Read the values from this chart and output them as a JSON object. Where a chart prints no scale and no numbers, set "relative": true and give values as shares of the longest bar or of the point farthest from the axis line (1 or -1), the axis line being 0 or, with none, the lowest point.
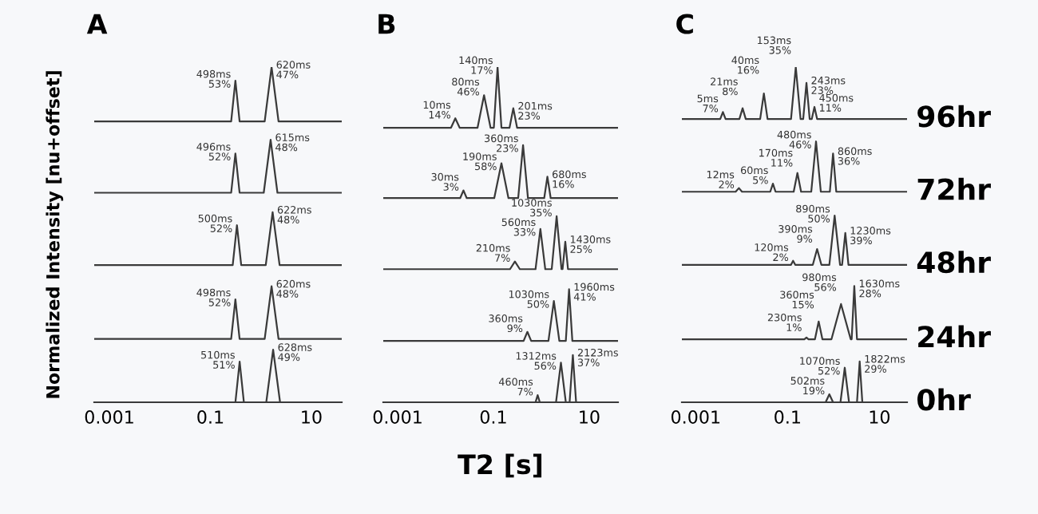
{
  "chart_data": [
    {
      "type": "line",
      "title": "A",
      "ylabel": "Normalized Intensity [nu+offset]",
      "relative": true,
      "log": "x",
      "xlim": [
        0.0005,
        40
      ],
      "xticks": [
        0.001,
        0.1,
        10
      ],
      "tick_labels": "x",
      "grid": false,
      "marker": "none",
      "line_style": "solid",
      "series": [
        {
          "color": "#3a3a3a",
          "x": [
            0.0005,
            0.258,
            0.313,
            0.379,
            1.19,
            1.63,
            2.24,
            40
          ],
          "values": [
            0.838,
            0.838,
            0.959,
            0.838,
            0.838,
            1.0,
            0.838,
            0.838
          ]
        },
        {
          "color": "#3a3a3a",
          "x": [
            0.0005,
            0.258,
            0.313,
            0.379,
            1.14,
            1.56,
            2.13,
            40
          ],
          "values": [
            0.625,
            0.625,
            0.742,
            0.625,
            0.625,
            0.783,
            0.625,
            0.625
          ]
        },
        {
          "color": "#3a3a3a",
          "x": [
            0.0005,
            0.277,
            0.336,
            0.408,
            1.25,
            1.71,
            2.35,
            40
          ],
          "values": [
            0.409,
            0.409,
            0.528,
            0.409,
            0.409,
            0.567,
            0.409,
            0.409
          ]
        },
        {
          "color": "#3a3a3a",
          "x": [
            0.0005,
            0.258,
            0.313,
            0.379,
            1.19,
            1.63,
            2.24,
            40
          ],
          "values": [
            0.189,
            0.189,
            0.307,
            0.189,
            0.189,
            0.346,
            0.189,
            0.189
          ]
        },
        {
          "color": "#3a3a3a",
          "x": [
            0.0005,
            0.313,
            0.38,
            0.461,
            1.28,
            1.75,
            2.4,
            40
          ],
          "values": [
            0,
            0,
            0.121,
            0,
            0,
            0.157,
            0,
            0
          ]
        }
      ],
      "annotations": [
        {
          "text": "498ms\n53%",
          "x": 0.313,
          "y": 0.959
        },
        {
          "text": "620ms\n47%",
          "x": 1.63,
          "y": 1.0
        },
        {
          "text": "496ms\n52%",
          "x": 0.313,
          "y": 0.742
        },
        {
          "text": "615ms\n48%",
          "x": 1.56,
          "y": 0.783
        },
        {
          "text": "500ms\n52%",
          "x": 0.336,
          "y": 0.528
        },
        {
          "text": "622ms\n48%",
          "x": 1.71,
          "y": 0.567
        },
        {
          "text": "498ms\n52%",
          "x": 0.313,
          "y": 0.307
        },
        {
          "text": "620ms\n48%",
          "x": 1.63,
          "y": 0.346
        },
        {
          "text": "510ms\n51%",
          "x": 0.38,
          "y": 0.121
        },
        {
          "text": "628ms\n49%",
          "x": 1.75,
          "y": 0.157
        }
      ]
    },
    {
      "type": "line",
      "title": "B",
      "xlabel": "T2 [s]",
      "relative": true,
      "log": "x",
      "xlim": [
        0.0005,
        40
      ],
      "xticks": [
        0.001,
        0.1,
        10
      ],
      "tick_labels": "x",
      "grid": false,
      "marker": "none",
      "line_style": "solid",
      "series": [
        {
          "color": "#3a3a3a",
          "x": [
            0.0005,
            0.013,
            0.016,
            0.0197,
            0.0466,
            0.0637,
            0.0871,
            0.102,
            0.122,
            0.147,
            0.217,
            0.26,
            0.312,
            40
          ],
          "values": [
            0.819,
            0.819,
            0.847,
            0.819,
            0.819,
            0.916,
            0.819,
            0.819,
            1.0,
            0.819,
            0.819,
            0.877,
            0.819,
            0.819
          ]
        },
        {
          "color": "#3a3a3a",
          "x": [
            0.0005,
            0.0202,
            0.0237,
            0.0277,
            0.104,
            0.147,
            0.206,
            0.329,
            0.416,
            0.526,
            1.15,
            1.34,
            1.57,
            40
          ],
          "values": [
            0.609,
            0.609,
            0.632,
            0.609,
            0.609,
            0.713,
            0.609,
            0.609,
            0.767,
            0.609,
            0.609,
            0.673,
            0.609,
            0.609
          ]
        },
        {
          "color": "#3a3a3a",
          "x": [
            0.0005,
            0.222,
            0.281,
            0.356,
            0.757,
            0.957,
            1.21,
            1.65,
            2.09,
            2.64,
            2.78,
            3.17,
            3.61,
            40
          ],
          "values": [
            0.397,
            0.397,
            0.42,
            0.397,
            0.397,
            0.517,
            0.397,
            0.397,
            0.555,
            0.397,
            0.397,
            0.479,
            0.397,
            0.397
          ]
        },
        {
          "color": "#3a3a3a",
          "x": [
            0.0005,
            0.427,
            0.512,
            0.614,
            1.41,
            1.83,
            2.38,
            3.25,
            3.8,
            4.45,
            40
          ],
          "values": [
            0.183,
            0.183,
            0.21,
            0.183,
            0.183,
            0.302,
            0.183,
            0.183,
            0.337,
            0.183,
            0.183
          ]
        },
        {
          "color": "#3a3a3a",
          "x": [
            0.0005,
            0.757,
            0.839,
            0.931,
            2.03,
            2.57,
            3.25,
            3.9,
            4.56,
            5.33,
            40
          ],
          "values": [
            0,
            0,
            0.021,
            0,
            0,
            0.118,
            0,
            0,
            0.141,
            0,
            0
          ]
        }
      ],
      "annotations": [
        {
          "text": "10ms\n14%",
          "x": 0.016,
          "y": 0.847
        },
        {
          "text": "80ms\n46%",
          "x": 0.0637,
          "y": 0.916
        },
        {
          "text": "140ms\n17%",
          "x": 0.122,
          "y": 1.0
        },
        {
          "text": "201ms\n23%",
          "x": 0.26,
          "y": 0.877
        },
        {
          "text": "30ms\n3%",
          "x": 0.0237,
          "y": 0.632
        },
        {
          "text": "190ms\n58%",
          "x": 0.147,
          "y": 0.713
        },
        {
          "text": "360ms\n23%",
          "x": 0.416,
          "y": 0.767
        },
        {
          "text": "680ms\n16%",
          "x": 1.34,
          "y": 0.673
        },
        {
          "text": "210ms\n7%",
          "x": 0.281,
          "y": 0.42
        },
        {
          "text": "560ms\n33%",
          "x": 0.957,
          "y": 0.517
        },
        {
          "text": "1030ms\n35%",
          "x": 2.09,
          "y": 0.555
        },
        {
          "text": "1430ms\n25%",
          "x": 3.17,
          "y": 0.479
        },
        {
          "text": "360ms\n9%",
          "x": 0.512,
          "y": 0.21
        },
        {
          "text": "1030ms\n50%",
          "x": 1.83,
          "y": 0.302
        },
        {
          "text": "1960ms\n41%",
          "x": 3.8,
          "y": 0.337
        },
        {
          "text": "460ms\n7%",
          "x": 0.839,
          "y": 0.021
        },
        {
          "text": "1312ms\n56%",
          "x": 2.57,
          "y": 0.118
        },
        {
          "text": "2123ms\n37%",
          "x": 4.56,
          "y": 0.141
        }
      ]
    },
    {
      "type": "line",
      "title": "C",
      "relative": true,
      "log": "x",
      "xlim": [
        0.0005,
        40
      ],
      "xticks": [
        0.001,
        0.1,
        10
      ],
      "tick_labels": "x",
      "grid": false,
      "marker": "none",
      "line_style": "solid",
      "series": [
        {
          "name": "96hr",
          "color": "#3a3a3a",
          "x": [
            0.0005,
            0.00342,
            0.00391,
            0.00447,
            0.00893,
            0.0105,
            0.0123,
            0.0253,
            0.0305,
            0.0367,
            0.119,
            0.151,
            0.192,
            0.219,
            0.258,
            0.303,
            0.337,
            0.385,
            0.44,
            40
          ],
          "values": [
            0.845,
            0.845,
            0.866,
            0.845,
            0.845,
            0.877,
            0.845,
            0.845,
            0.921,
            0.845,
            0.845,
            1.0,
            0.845,
            0.845,
            0.953,
            0.845,
            0.845,
            0.881,
            0.845,
            0.845
          ]
        },
        {
          "name": "72hr",
          "color": "#3a3a3a",
          "x": [
            0.0005,
            0.00741,
            0.00871,
            0.0102,
            0.042,
            0.048,
            0.0548,
            0.136,
            0.164,
            0.197,
            0.328,
            0.417,
            0.53,
            0.834,
            0.979,
            1.15,
            40
          ],
          "values": [
            0.628,
            0.628,
            0.639,
            0.628,
            0.628,
            0.652,
            0.628,
            0.628,
            0.684,
            0.628,
            0.628,
            0.778,
            0.628,
            0.628,
            0.742,
            0.628,
            0.628
          ]
        },
        {
          "name": "48hr",
          "color": "#3a3a3a",
          "x": [
            0.0005,
            0.119,
            0.132,
            0.147,
            0.355,
            0.44,
            0.545,
            0.813,
            1.06,
            1.39,
            1.54,
            1.81,
            2.12,
            40
          ],
          "values": [
            0.41,
            0.41,
            0.422,
            0.41,
            0.41,
            0.457,
            0.41,
            0.41,
            0.557,
            0.41,
            0.41,
            0.505,
            0.41,
            0.41
          ]
        },
        {
          "name": "24hr",
          "color": "#3a3a3a",
          "x": [
            0.0005,
            0.232,
            0.258,
            0.286,
            0.395,
            0.476,
            0.574,
            0.904,
            1.46,
            2.37,
            2.49,
            2.84,
            3.25,
            40
          ],
          "values": [
            0.188,
            0.188,
            0.193,
            0.188,
            0.188,
            0.241,
            0.188,
            0.188,
            0.293,
            0.188,
            0.188,
            0.347,
            0.188,
            0.188
          ]
        },
        {
          "name": "0hr",
          "color": "#3a3a3a",
          "x": [
            0.0005,
            0.675,
            0.813,
            0.979,
            1.42,
            1.76,
            2.18,
            3.25,
            3.72,
            4.25,
            40
          ],
          "values": [
            0,
            0,
            0.024,
            0,
            0,
            0.103,
            0,
            0,
            0.122,
            0,
            0
          ]
        }
      ],
      "annotations": [
        {
          "text": "5ms\n7%",
          "x": 0.00391,
          "y": 0.866
        },
        {
          "text": "21ms\n8%",
          "x": 0.0105,
          "y": 0.877
        },
        {
          "text": "40ms\n16%",
          "x": 0.0305,
          "y": 0.921
        },
        {
          "text": "153ms\n35%",
          "x": 0.151,
          "y": 1.0
        },
        {
          "text": "243ms\n23%",
          "x": 0.258,
          "y": 0.953
        },
        {
          "text": "450ms\n11%",
          "x": 0.385,
          "y": 0.881
        },
        {
          "text": "12ms\n2%",
          "x": 0.00871,
          "y": 0.639
        },
        {
          "text": "60ms\n5%",
          "x": 0.048,
          "y": 0.652
        },
        {
          "text": "170ms\n11%",
          "x": 0.164,
          "y": 0.684
        },
        {
          "text": "480ms\n46%",
          "x": 0.417,
          "y": 0.778
        },
        {
          "text": "860ms\n36%",
          "x": 0.979,
          "y": 0.742
        },
        {
          "text": "120ms\n2%",
          "x": 0.132,
          "y": 0.422
        },
        {
          "text": "390ms\n9%",
          "x": 0.44,
          "y": 0.457
        },
        {
          "text": "890ms\n50%",
          "x": 1.06,
          "y": 0.557
        },
        {
          "text": "1230ms\n39%",
          "x": 1.81,
          "y": 0.505
        },
        {
          "text": "230ms\n1%",
          "x": 0.258,
          "y": 0.193
        },
        {
          "text": "360ms\n15%",
          "x": 0.476,
          "y": 0.241
        },
        {
          "text": "980ms\n56%",
          "x": 1.46,
          "y": 0.293
        },
        {
          "text": "1630ms\n28%",
          "x": 2.84,
          "y": 0.347
        },
        {
          "text": "502ms\n19%",
          "x": 0.813,
          "y": 0.024
        },
        {
          "text": "1070ms\n52%",
          "x": 1.76,
          "y": 0.103
        },
        {
          "text": "1822ms\n29%",
          "x": 3.72,
          "y": 0.122
        }
      ]
    }
  ]
}
